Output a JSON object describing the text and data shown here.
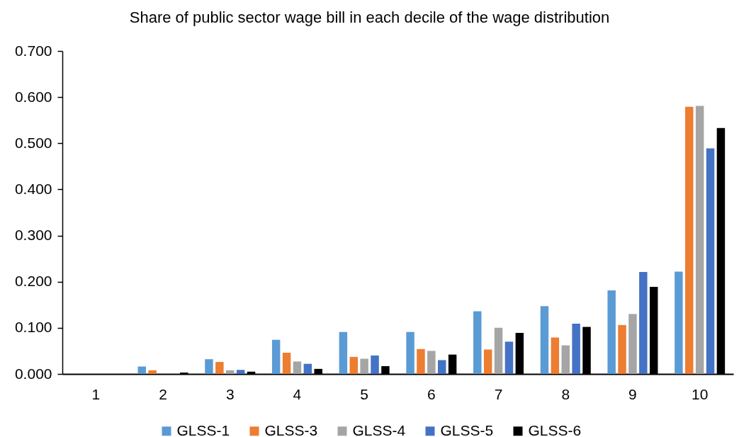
{
  "chart_data": {
    "type": "bar",
    "title": "Share of public sector wage bill in each decile of the wage distribution",
    "categories": [
      "1",
      "2",
      "3",
      "4",
      "5",
      "6",
      "7",
      "8",
      "9",
      "10"
    ],
    "series": [
      {
        "name": "GLSS-1",
        "color": "#5b9bd5",
        "values": [
          0.0,
          0.016,
          0.032,
          0.074,
          0.091,
          0.091,
          0.136,
          0.147,
          0.181,
          0.222
        ]
      },
      {
        "name": "GLSS-3",
        "color": "#ed7d31",
        "values": [
          0.0,
          0.008,
          0.026,
          0.046,
          0.037,
          0.054,
          0.053,
          0.079,
          0.106,
          0.579
        ]
      },
      {
        "name": "GLSS-4",
        "color": "#a5a5a5",
        "values": [
          0.0,
          0.0,
          0.008,
          0.027,
          0.033,
          0.05,
          0.1,
          0.062,
          0.13,
          0.581
        ]
      },
      {
        "name": "GLSS-5",
        "color": "#4472c4",
        "values": [
          0.0,
          0.0,
          0.009,
          0.022,
          0.04,
          0.03,
          0.07,
          0.109,
          0.221,
          0.489
        ]
      },
      {
        "name": "GLSS-6",
        "color": "#000000",
        "values": [
          0.0,
          0.003,
          0.005,
          0.011,
          0.017,
          0.042,
          0.089,
          0.102,
          0.189,
          0.533
        ]
      }
    ],
    "ylim": [
      0,
      0.7
    ],
    "yticks": [
      {
        "value": 0,
        "label": "0.000"
      },
      {
        "value": 0.1,
        "label": "0.100"
      },
      {
        "value": 0.2,
        "label": "0.200"
      },
      {
        "value": 0.3,
        "label": "0.300"
      },
      {
        "value": 0.4,
        "label": "0.400"
      },
      {
        "value": 0.5,
        "label": "0.500"
      },
      {
        "value": 0.6,
        "label": "0.600"
      },
      {
        "value": 0.7,
        "label": "0.700"
      }
    ],
    "legend": "bottom"
  }
}
